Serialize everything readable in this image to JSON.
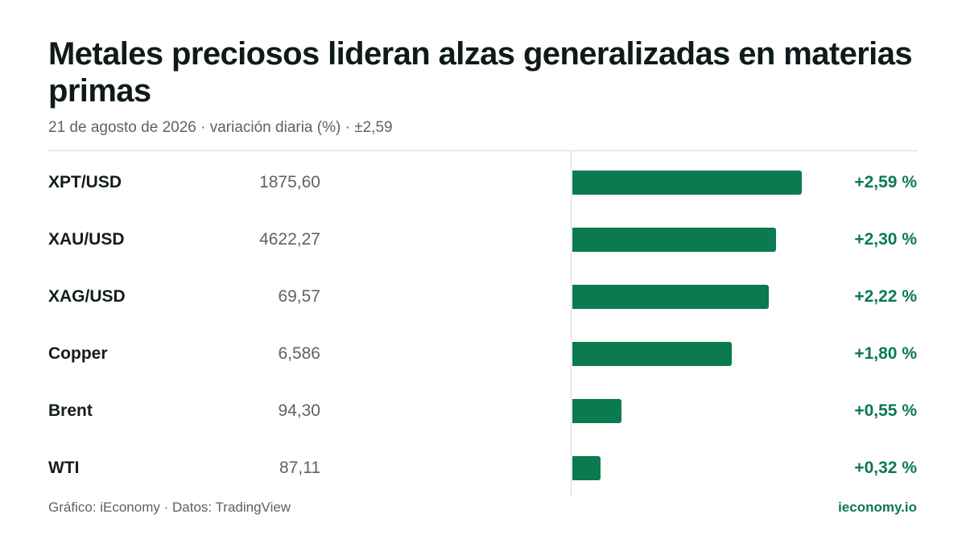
{
  "header": {
    "title": "Metales preciosos lideran alzas generalizadas en materias primas",
    "subtitle": "21 de agosto de 2026 · variación diaria (%) · ±2,59"
  },
  "footer": {
    "source": "Gráfico: iEconomy · Datos: TradingView",
    "brand": "ieconomy.io"
  },
  "colors": {
    "bar": "#0b7a4f",
    "positive_text": "#0b7a4f",
    "muted_text": "#5b6366",
    "rule": "#d6d9da"
  },
  "chart_data": {
    "type": "bar",
    "orientation": "horizontal",
    "categories": [
      "XPT/USD",
      "XAU/USD",
      "XAG/USD",
      "Copper",
      "Brent",
      "WTI"
    ],
    "prices": [
      "1875,60",
      "4622,27",
      "69,57",
      "6,586",
      "94,30",
      "87,11"
    ],
    "values": [
      2.59,
      2.3,
      2.22,
      1.8,
      0.55,
      0.32
    ],
    "value_labels": [
      "+2,59 %",
      "+2,30 %",
      "+2,22 %",
      "+1,80 %",
      "+0,55 %",
      "+0,32 %"
    ],
    "xlim": [
      -2.59,
      2.59
    ],
    "grid": false,
    "legend": "none"
  }
}
